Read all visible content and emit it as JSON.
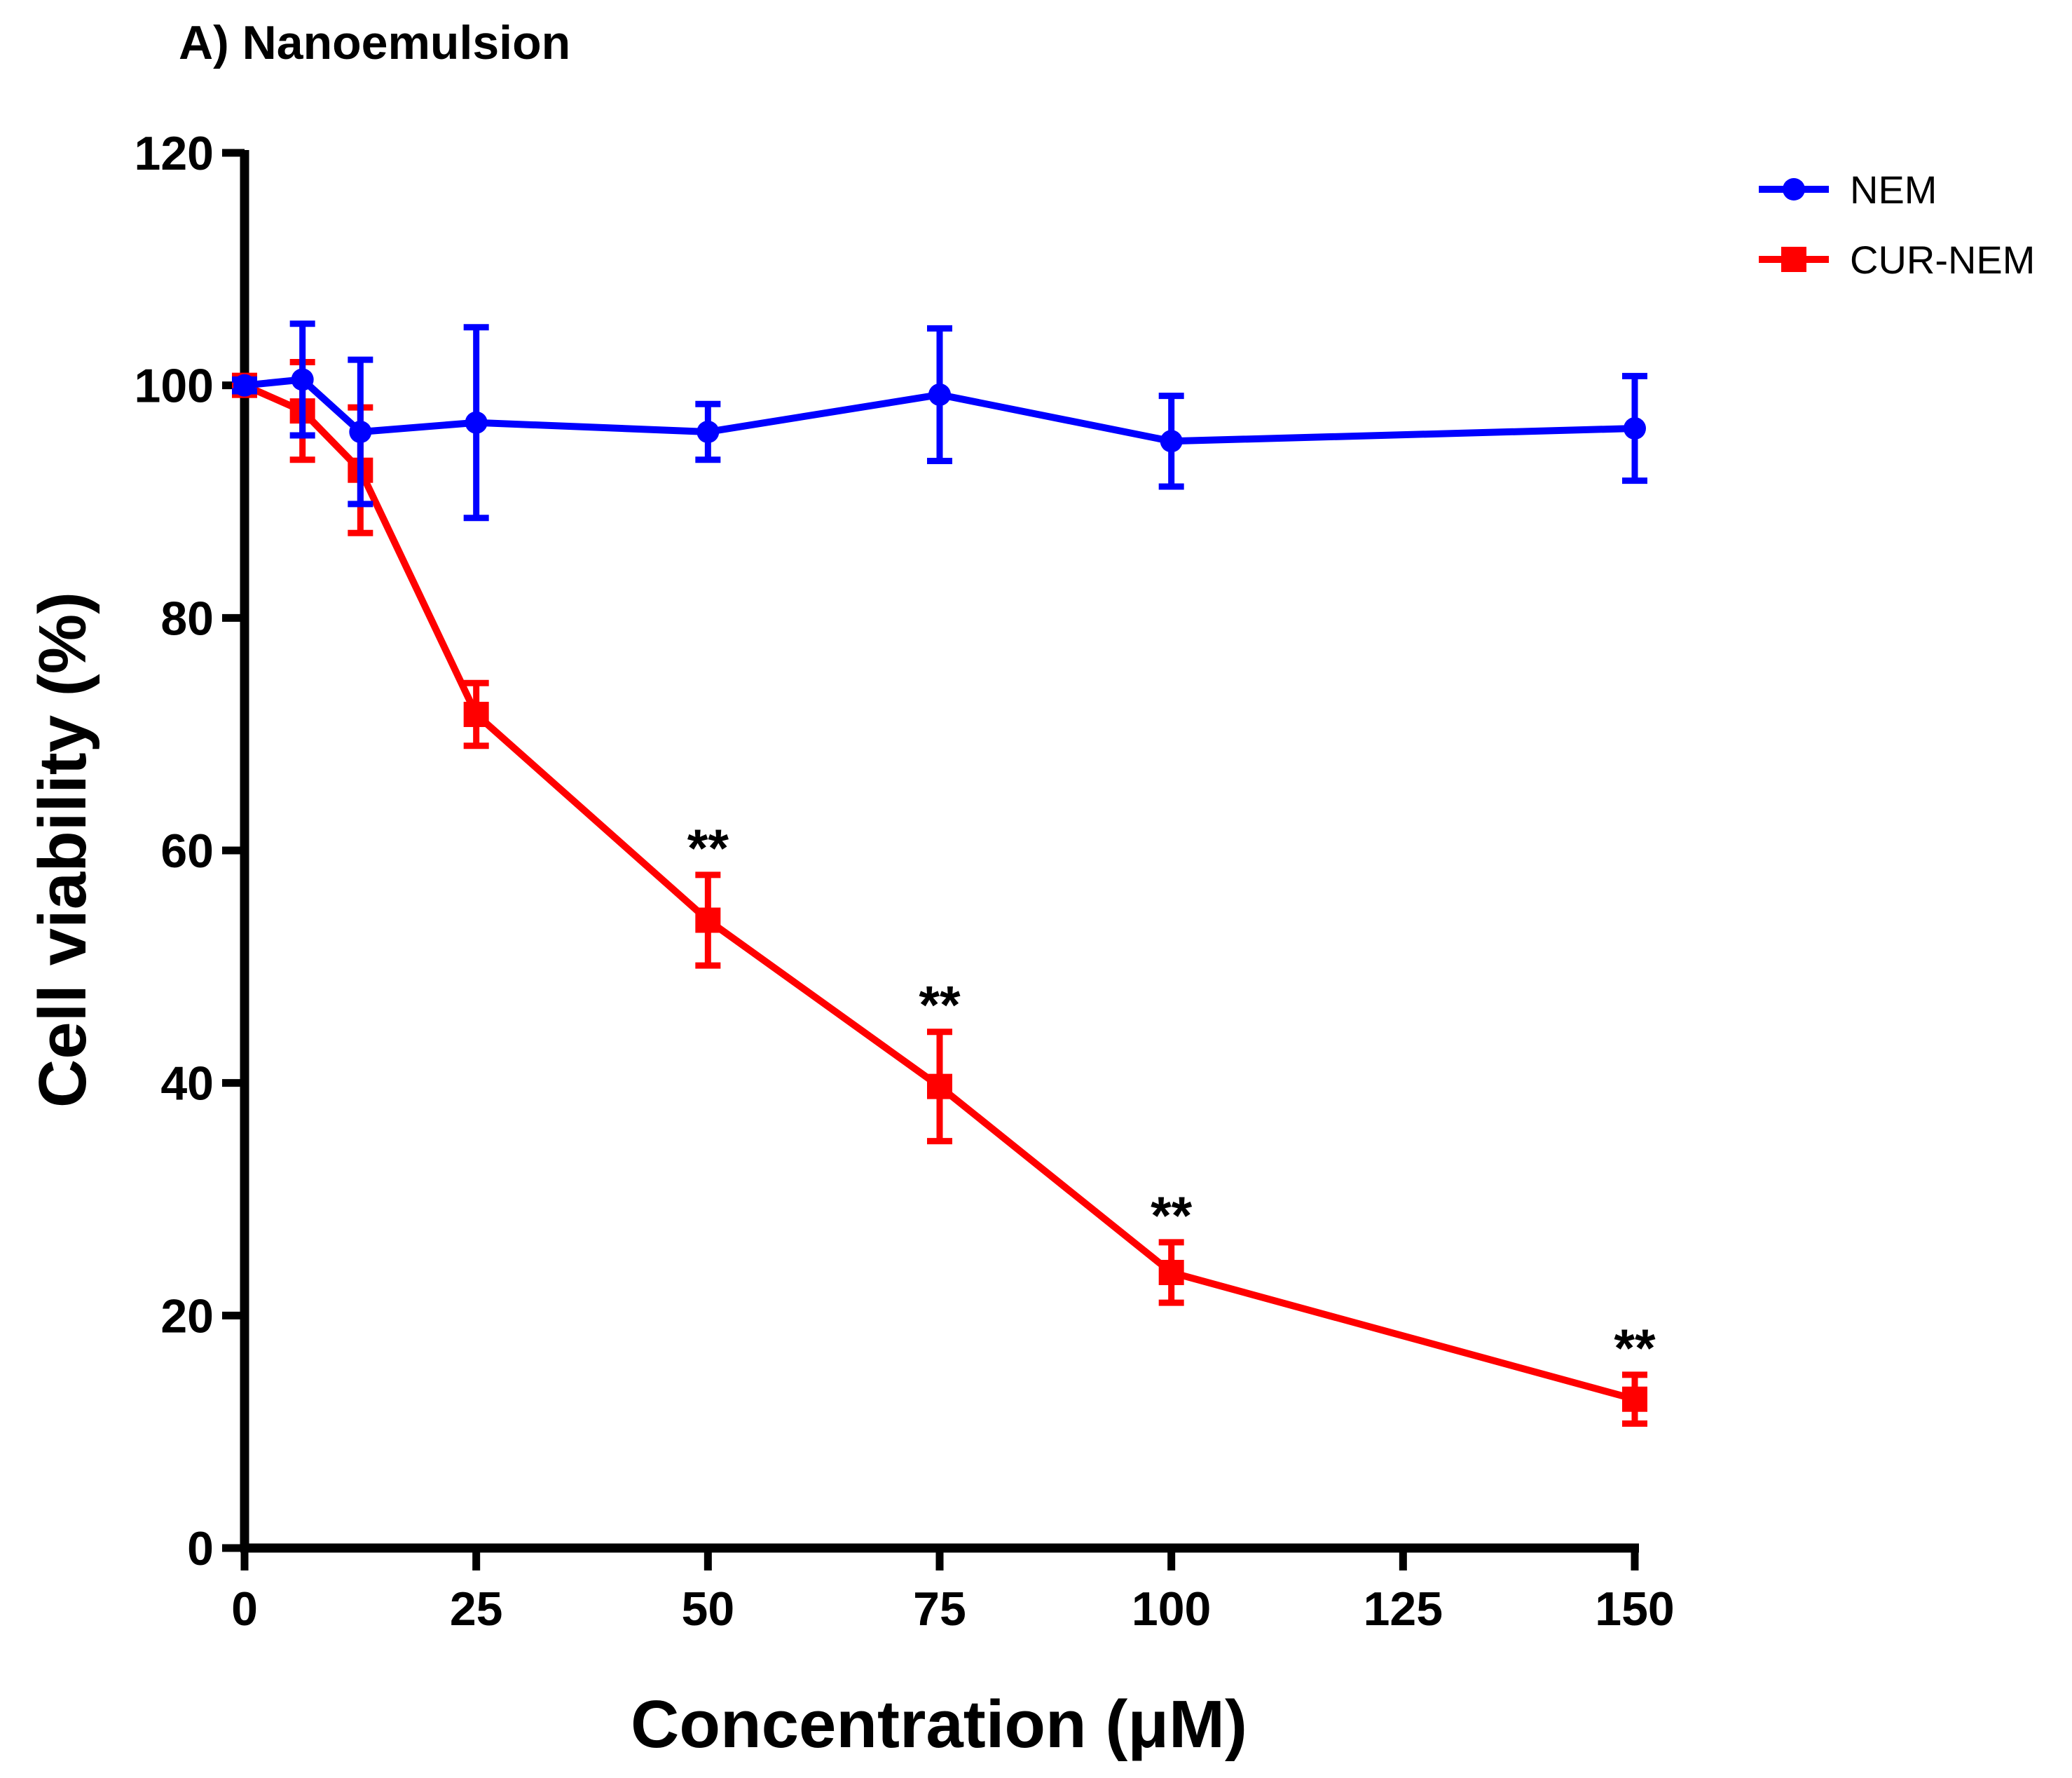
{
  "chart_data": {
    "type": "line",
    "title": "A) Nanoemulsion",
    "xlabel": "Concentration (μM)",
    "ylabel": "Cell viability (%)",
    "xlim": [
      0,
      150
    ],
    "ylim": [
      0,
      120
    ],
    "xticks": [
      0,
      25,
      50,
      75,
      100,
      125,
      150
    ],
    "yticks": [
      0,
      20,
      40,
      60,
      80,
      100,
      120
    ],
    "legend_position": "top-right",
    "series": [
      {
        "name": "NEM",
        "color": "#0000ff",
        "marker": "circle",
        "x": [
          0,
          6.25,
          12.5,
          25,
          50,
          75,
          100,
          150
        ],
        "y": [
          100,
          100.5,
          96,
          96.8,
          96,
          99.2,
          95.2,
          96.3
        ],
        "err": [
          0.5,
          4.8,
          6.2,
          8.2,
          2.4,
          5.7,
          3.9,
          4.5
        ],
        "annotations": [
          "",
          "",
          "",
          "",
          "",
          "",
          "",
          ""
        ]
      },
      {
        "name": "CUR-NEM",
        "color": "#ff0000",
        "marker": "square",
        "x": [
          0,
          6.25,
          12.5,
          25,
          50,
          75,
          100,
          150
        ],
        "y": [
          100,
          97.8,
          92.7,
          71.7,
          54,
          39.7,
          23.7,
          12.8
        ],
        "err": [
          0.8,
          4.2,
          5.4,
          2.7,
          3.9,
          4.7,
          2.6,
          2.1
        ],
        "annotations": [
          "",
          "",
          "",
          "",
          "**",
          "**",
          "**",
          "**"
        ]
      }
    ]
  }
}
